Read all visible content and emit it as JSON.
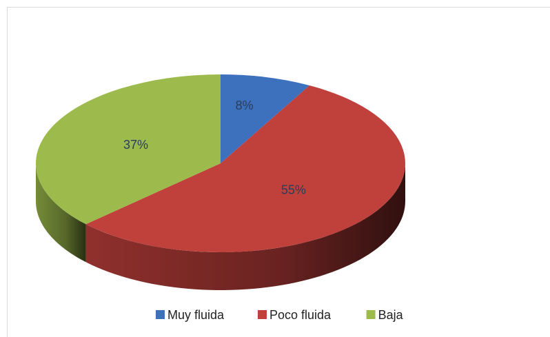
{
  "chart_data": {
    "type": "pie3d",
    "categories": [
      "Muy fluida",
      "Poco fluida",
      "Baja"
    ],
    "values": [
      8,
      55,
      37
    ],
    "value_labels": [
      "8%",
      "55%",
      "37%"
    ],
    "colors": [
      "#3d70bd",
      "#c0403c",
      "#9cbb4c"
    ],
    "legend": "bottom"
  }
}
